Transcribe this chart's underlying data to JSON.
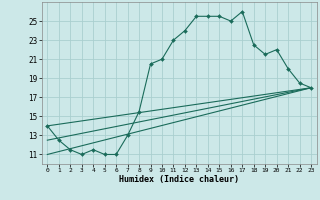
{
  "xlabel": "Humidex (Indice chaleur)",
  "bg_color": "#cce8e8",
  "grid_color": "#aacfcf",
  "line_color": "#1a6b5a",
  "xlim": [
    -0.5,
    23.5
  ],
  "ylim": [
    10.0,
    27.0
  ],
  "yticks": [
    11,
    13,
    15,
    17,
    19,
    21,
    23,
    25
  ],
  "xticks": [
    0,
    1,
    2,
    3,
    4,
    5,
    6,
    7,
    8,
    9,
    10,
    11,
    12,
    13,
    14,
    15,
    16,
    17,
    18,
    19,
    20,
    21,
    22,
    23
  ],
  "series1_x": [
    0,
    1,
    2,
    3,
    4,
    5,
    6,
    7,
    8,
    9,
    10,
    11,
    12,
    13,
    14,
    15,
    16,
    17,
    18,
    19,
    20,
    21,
    22,
    23
  ],
  "series1_y": [
    14.0,
    12.5,
    11.5,
    11.0,
    11.5,
    11.0,
    11.0,
    13.0,
    15.5,
    20.5,
    21.0,
    23.0,
    24.0,
    25.5,
    25.5,
    25.5,
    25.0,
    26.0,
    22.5,
    21.5,
    22.0,
    20.0,
    18.5,
    18.0
  ],
  "series2_x": [
    0,
    23
  ],
  "series2_y": [
    11.0,
    18.0
  ],
  "series3_x": [
    0,
    23
  ],
  "series3_y": [
    12.5,
    18.0
  ],
  "series4_x": [
    0,
    23
  ],
  "series4_y": [
    14.0,
    18.0
  ]
}
